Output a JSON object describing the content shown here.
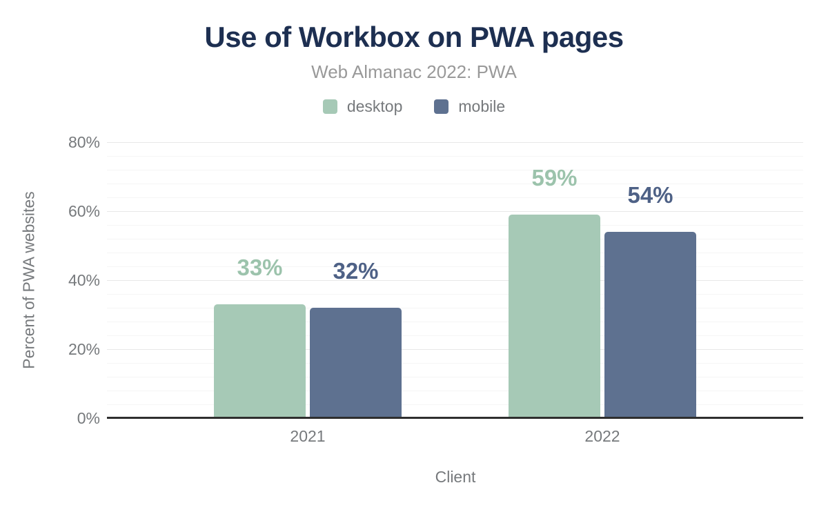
{
  "chart_data": {
    "type": "bar",
    "title": "Use of Workbox on PWA pages",
    "subtitle": "Web Almanac 2022: PWA",
    "xlabel": "Client",
    "ylabel": "Percent of PWA websites",
    "categories": [
      "2021",
      "2022"
    ],
    "series": [
      {
        "name": "desktop",
        "values": [
          33,
          59
        ],
        "color": "#a6c9b6",
        "label_color": "#9cc3ac"
      },
      {
        "name": "mobile",
        "values": [
          32,
          54
        ],
        "color": "#5e7190",
        "label_color": "#4e6186"
      }
    ],
    "value_suffix": "%",
    "data_labels": [
      [
        "33%",
        "59%"
      ],
      [
        "32%",
        "54%"
      ]
    ],
    "ylim": [
      0,
      80
    ],
    "ytick_step_major": 20,
    "ytick_step_minor": 4,
    "yticks": [
      "0%",
      "20%",
      "40%",
      "60%",
      "80%"
    ],
    "grid": true,
    "legend_position": "top"
  },
  "colors": {
    "background": "#ffffff",
    "title": "#1d2f51",
    "subtitle": "#999999",
    "axis_text": "#76797c",
    "axis_line": "#2e2e2e",
    "grid_major": "#e8e8e8",
    "grid_minor": "#f5f5f5"
  }
}
